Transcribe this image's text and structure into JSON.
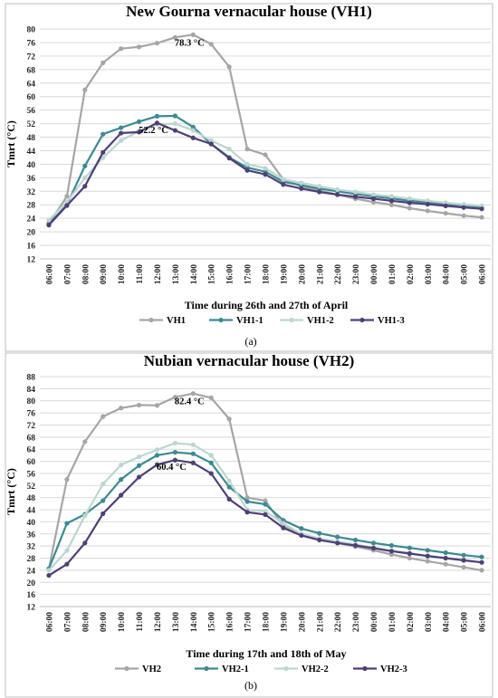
{
  "chart_data": [
    {
      "type": "line",
      "title": "New Gourna vernacular house (VH1)",
      "xlabel": "Time during 26th and 27th of April",
      "ylabel": "Tmrt (°C)",
      "ylim": [
        12,
        80
      ],
      "yticks": [
        12,
        16,
        20,
        24,
        28,
        32,
        36,
        40,
        44,
        48,
        52,
        56,
        60,
        64,
        68,
        72,
        76,
        80
      ],
      "categories": [
        "06:00",
        "07:00",
        "08:00",
        "09:00",
        "10:00",
        "11:00",
        "12:00",
        "13:00",
        "14:00",
        "15:00",
        "16:00",
        "17:00",
        "18:00",
        "19:00",
        "20:00",
        "21:00",
        "22:00",
        "23:00",
        "00:00",
        "01:00",
        "02:00",
        "03:00",
        "04:00",
        "05:00",
        "06:00"
      ],
      "grid": true,
      "legend_position": "bottom",
      "panel_label": "(a)",
      "annotations": [
        {
          "text": "78.3 °C",
          "x": "14:00",
          "y": 78.3
        },
        {
          "text": "52.2 °C",
          "x": "12:00",
          "y": 52.2
        }
      ],
      "series": [
        {
          "name": "VH1",
          "color": "#a6a6a6",
          "values": [
            22.5,
            30.5,
            62.0,
            70.0,
            74.2,
            74.7,
            75.8,
            77.5,
            78.3,
            75.5,
            68.8,
            44.5,
            42.8,
            35.5,
            33.5,
            32.2,
            31.0,
            29.8,
            28.8,
            28.0,
            27.0,
            26.2,
            25.5,
            24.8,
            24.3
          ]
        },
        {
          "name": "VH1-1",
          "color": "#3c8a92",
          "values": [
            22.3,
            28.0,
            39.5,
            48.9,
            50.8,
            52.6,
            54.2,
            54.3,
            51.0,
            46.0,
            42.0,
            39.0,
            37.8,
            34.8,
            33.8,
            32.8,
            32.0,
            31.2,
            30.5,
            29.9,
            29.2,
            28.8,
            28.2,
            27.8,
            27.3
          ]
        },
        {
          "name": "VH1-2",
          "color": "#bcd6d1",
          "values": [
            23.5,
            28.8,
            36.0,
            41.9,
            47.0,
            49.8,
            51.8,
            52.0,
            50.0,
            47.0,
            44.5,
            40.0,
            38.8,
            35.5,
            34.5,
            33.5,
            32.5,
            31.8,
            31.0,
            30.5,
            29.8,
            29.2,
            28.6,
            28.1,
            27.7
          ]
        },
        {
          "name": "VH1-3",
          "color": "#4f3f78",
          "values": [
            22.0,
            27.8,
            33.5,
            43.5,
            49.2,
            49.5,
            52.2,
            50.0,
            47.8,
            46.0,
            41.8,
            38.2,
            37.0,
            34.0,
            32.8,
            31.8,
            31.0,
            30.4,
            29.8,
            29.2,
            28.6,
            28.2,
            27.7,
            27.2,
            26.8
          ]
        }
      ]
    },
    {
      "type": "line",
      "title": "Nubian vernacular house (VH2)",
      "xlabel": "Time during 17th and 18th of May",
      "ylabel": "Tmrt (°C)",
      "ylim": [
        12,
        88
      ],
      "yticks": [
        12,
        16,
        20,
        24,
        28,
        32,
        36,
        40,
        44,
        48,
        52,
        56,
        60,
        64,
        68,
        72,
        76,
        80,
        84,
        88
      ],
      "categories": [
        "06:00",
        "07:00",
        "08:00",
        "09:00",
        "10:00",
        "11:00",
        "12:00",
        "13:00",
        "14:00",
        "15:00",
        "16:00",
        "17:00",
        "18:00",
        "19:00",
        "20:00",
        "21:00",
        "22:00",
        "23:00",
        "00:00",
        "01:00",
        "02:00",
        "03:00",
        "04:00",
        "05:00",
        "06:00"
      ],
      "grid": true,
      "legend_position": "bottom",
      "panel_label": "(b)",
      "annotations": [
        {
          "text": "82.4 °C",
          "x": "14:00",
          "y": 82.4
        },
        {
          "text": "60.4 °C",
          "x": "13:00",
          "y": 60.4
        }
      ],
      "series": [
        {
          "name": "VH2",
          "color": "#a6a6a6",
          "values": [
            24.5,
            54.0,
            66.5,
            74.8,
            77.6,
            78.6,
            78.5,
            81.2,
            82.4,
            81.0,
            74.0,
            48.0,
            47.0,
            38.5,
            36.0,
            34.2,
            33.0,
            31.8,
            30.6,
            29.2,
            28.0,
            27.0,
            26.0,
            25.0,
            24.0
          ]
        },
        {
          "name": "VH2-1",
          "color": "#3c8a92",
          "values": [
            24.5,
            39.5,
            42.5,
            47.0,
            54.0,
            58.6,
            62.0,
            63.0,
            62.5,
            59.5,
            51.5,
            46.7,
            45.8,
            40.5,
            37.8,
            36.2,
            35.0,
            34.0,
            33.0,
            32.2,
            31.4,
            30.6,
            29.8,
            29.0,
            28.4
          ]
        },
        {
          "name": "VH2-2",
          "color": "#bcd6d1",
          "values": [
            24.0,
            30.5,
            42.0,
            52.5,
            58.8,
            61.5,
            63.8,
            66.0,
            65.5,
            62.0,
            53.5,
            44.0,
            43.5,
            39.5,
            36.0,
            34.5,
            33.5,
            32.5,
            31.5,
            30.5,
            29.7,
            28.8,
            28.0,
            27.2,
            26.6
          ]
        },
        {
          "name": "VH2-3",
          "color": "#4f3f78",
          "values": [
            22.3,
            26.0,
            33.0,
            42.7,
            48.8,
            54.8,
            58.9,
            60.4,
            59.5,
            56.0,
            47.5,
            43.2,
            42.4,
            38.0,
            35.5,
            34.0,
            33.0,
            32.2,
            31.3,
            30.3,
            29.5,
            28.7,
            28.0,
            27.3,
            26.6
          ]
        }
      ]
    }
  ]
}
